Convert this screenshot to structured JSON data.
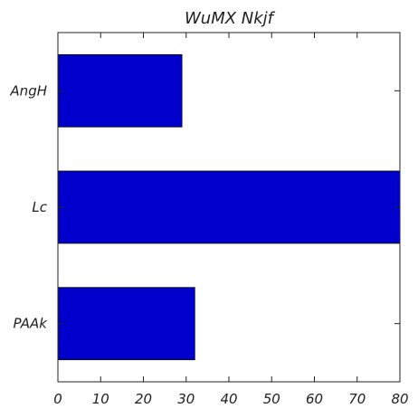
{
  "chart_data": {
    "type": "bar",
    "orientation": "horizontal",
    "title": "WuMX  Nkjf",
    "categories": [
      "AngH",
      "Lc",
      "PAAk"
    ],
    "values": [
      29,
      80,
      32
    ],
    "xlim": [
      0,
      80
    ],
    "xticks": [
      0,
      10,
      20,
      30,
      40,
      50,
      60,
      70,
      80
    ],
    "xlabel": "",
    "ylabel": "",
    "bar_color": "#0000cc",
    "grid": false,
    "legend": "none"
  }
}
